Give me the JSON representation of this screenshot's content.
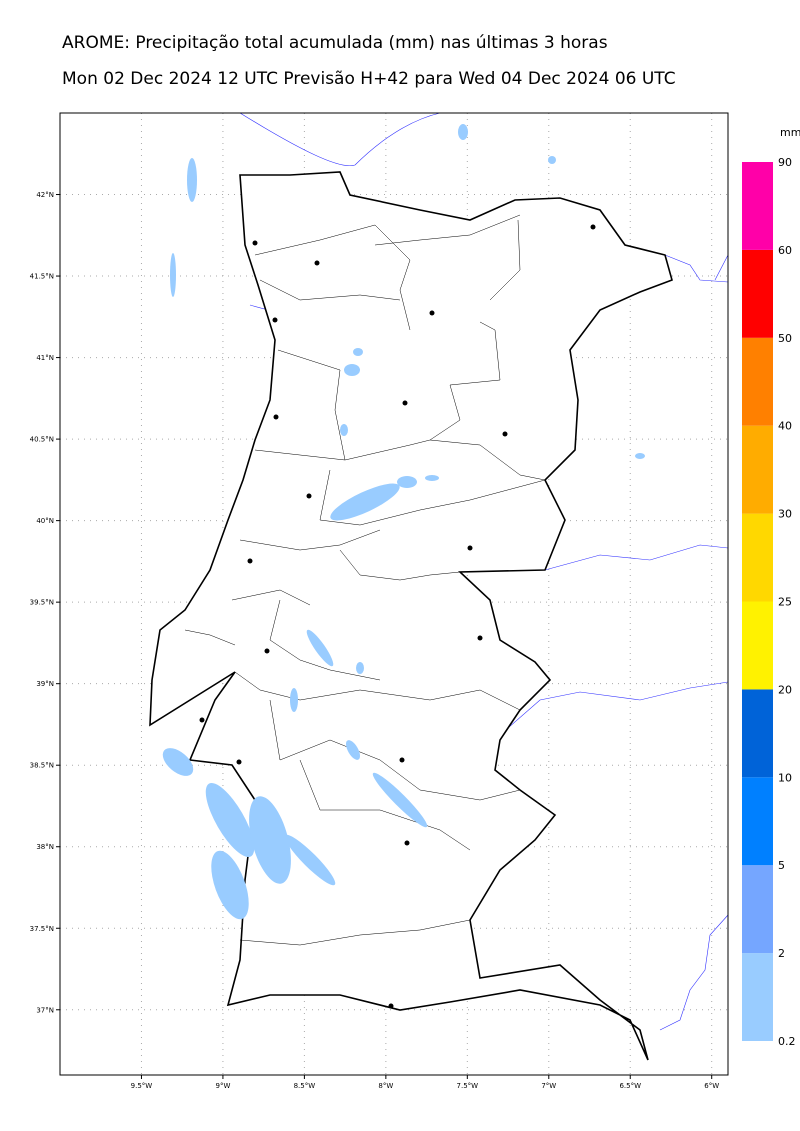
{
  "header": {
    "title": "AROME: Precipitação total acumulada (mm) nas últimas 3 horas",
    "subtitle": "Mon 02 Dec 2024 12 UTC Previsão H+42 para Wed 04 Dec 2024 06 UTC"
  },
  "map": {
    "xlim": [
      -10,
      -5.9
    ],
    "ylim": [
      36.6,
      42.5
    ],
    "xticks": [
      {
        "value": -9.5,
        "label": "9.5°W"
      },
      {
        "value": -9,
        "label": "9°W"
      },
      {
        "value": -8.5,
        "label": "8.5°W"
      },
      {
        "value": -8,
        "label": "8°W"
      },
      {
        "value": -7.5,
        "label": "7.5°W"
      },
      {
        "value": -7,
        "label": "7°W"
      },
      {
        "value": -6.5,
        "label": "6.5°W"
      },
      {
        "value": -6,
        "label": "6°W"
      }
    ],
    "yticks": [
      {
        "value": 42,
        "label": "42°N"
      },
      {
        "value": 41.5,
        "label": "41.5°N"
      },
      {
        "value": 41,
        "label": "41°N"
      },
      {
        "value": 40.5,
        "label": "40.5°N"
      },
      {
        "value": 40,
        "label": "40°N"
      },
      {
        "value": 39.5,
        "label": "39.5°N"
      },
      {
        "value": 39,
        "label": "39°N"
      },
      {
        "value": 38.5,
        "label": "38.5°N"
      },
      {
        "value": 38,
        "label": "38°N"
      },
      {
        "value": 37.5,
        "label": "37.5°N"
      },
      {
        "value": 37,
        "label": "37°N"
      }
    ]
  },
  "colorbar": {
    "unit": "mm",
    "levels": [
      0.2,
      2,
      5,
      10,
      20,
      25,
      30,
      40,
      50,
      60,
      90
    ],
    "colors": [
      "#99ccff",
      "#75a6ff",
      "#0080ff",
      "#0063d8",
      "#fff200",
      "#ffd800",
      "#ffac00",
      "#ff8000",
      "#ff0000",
      "#ff00a8"
    ]
  }
}
